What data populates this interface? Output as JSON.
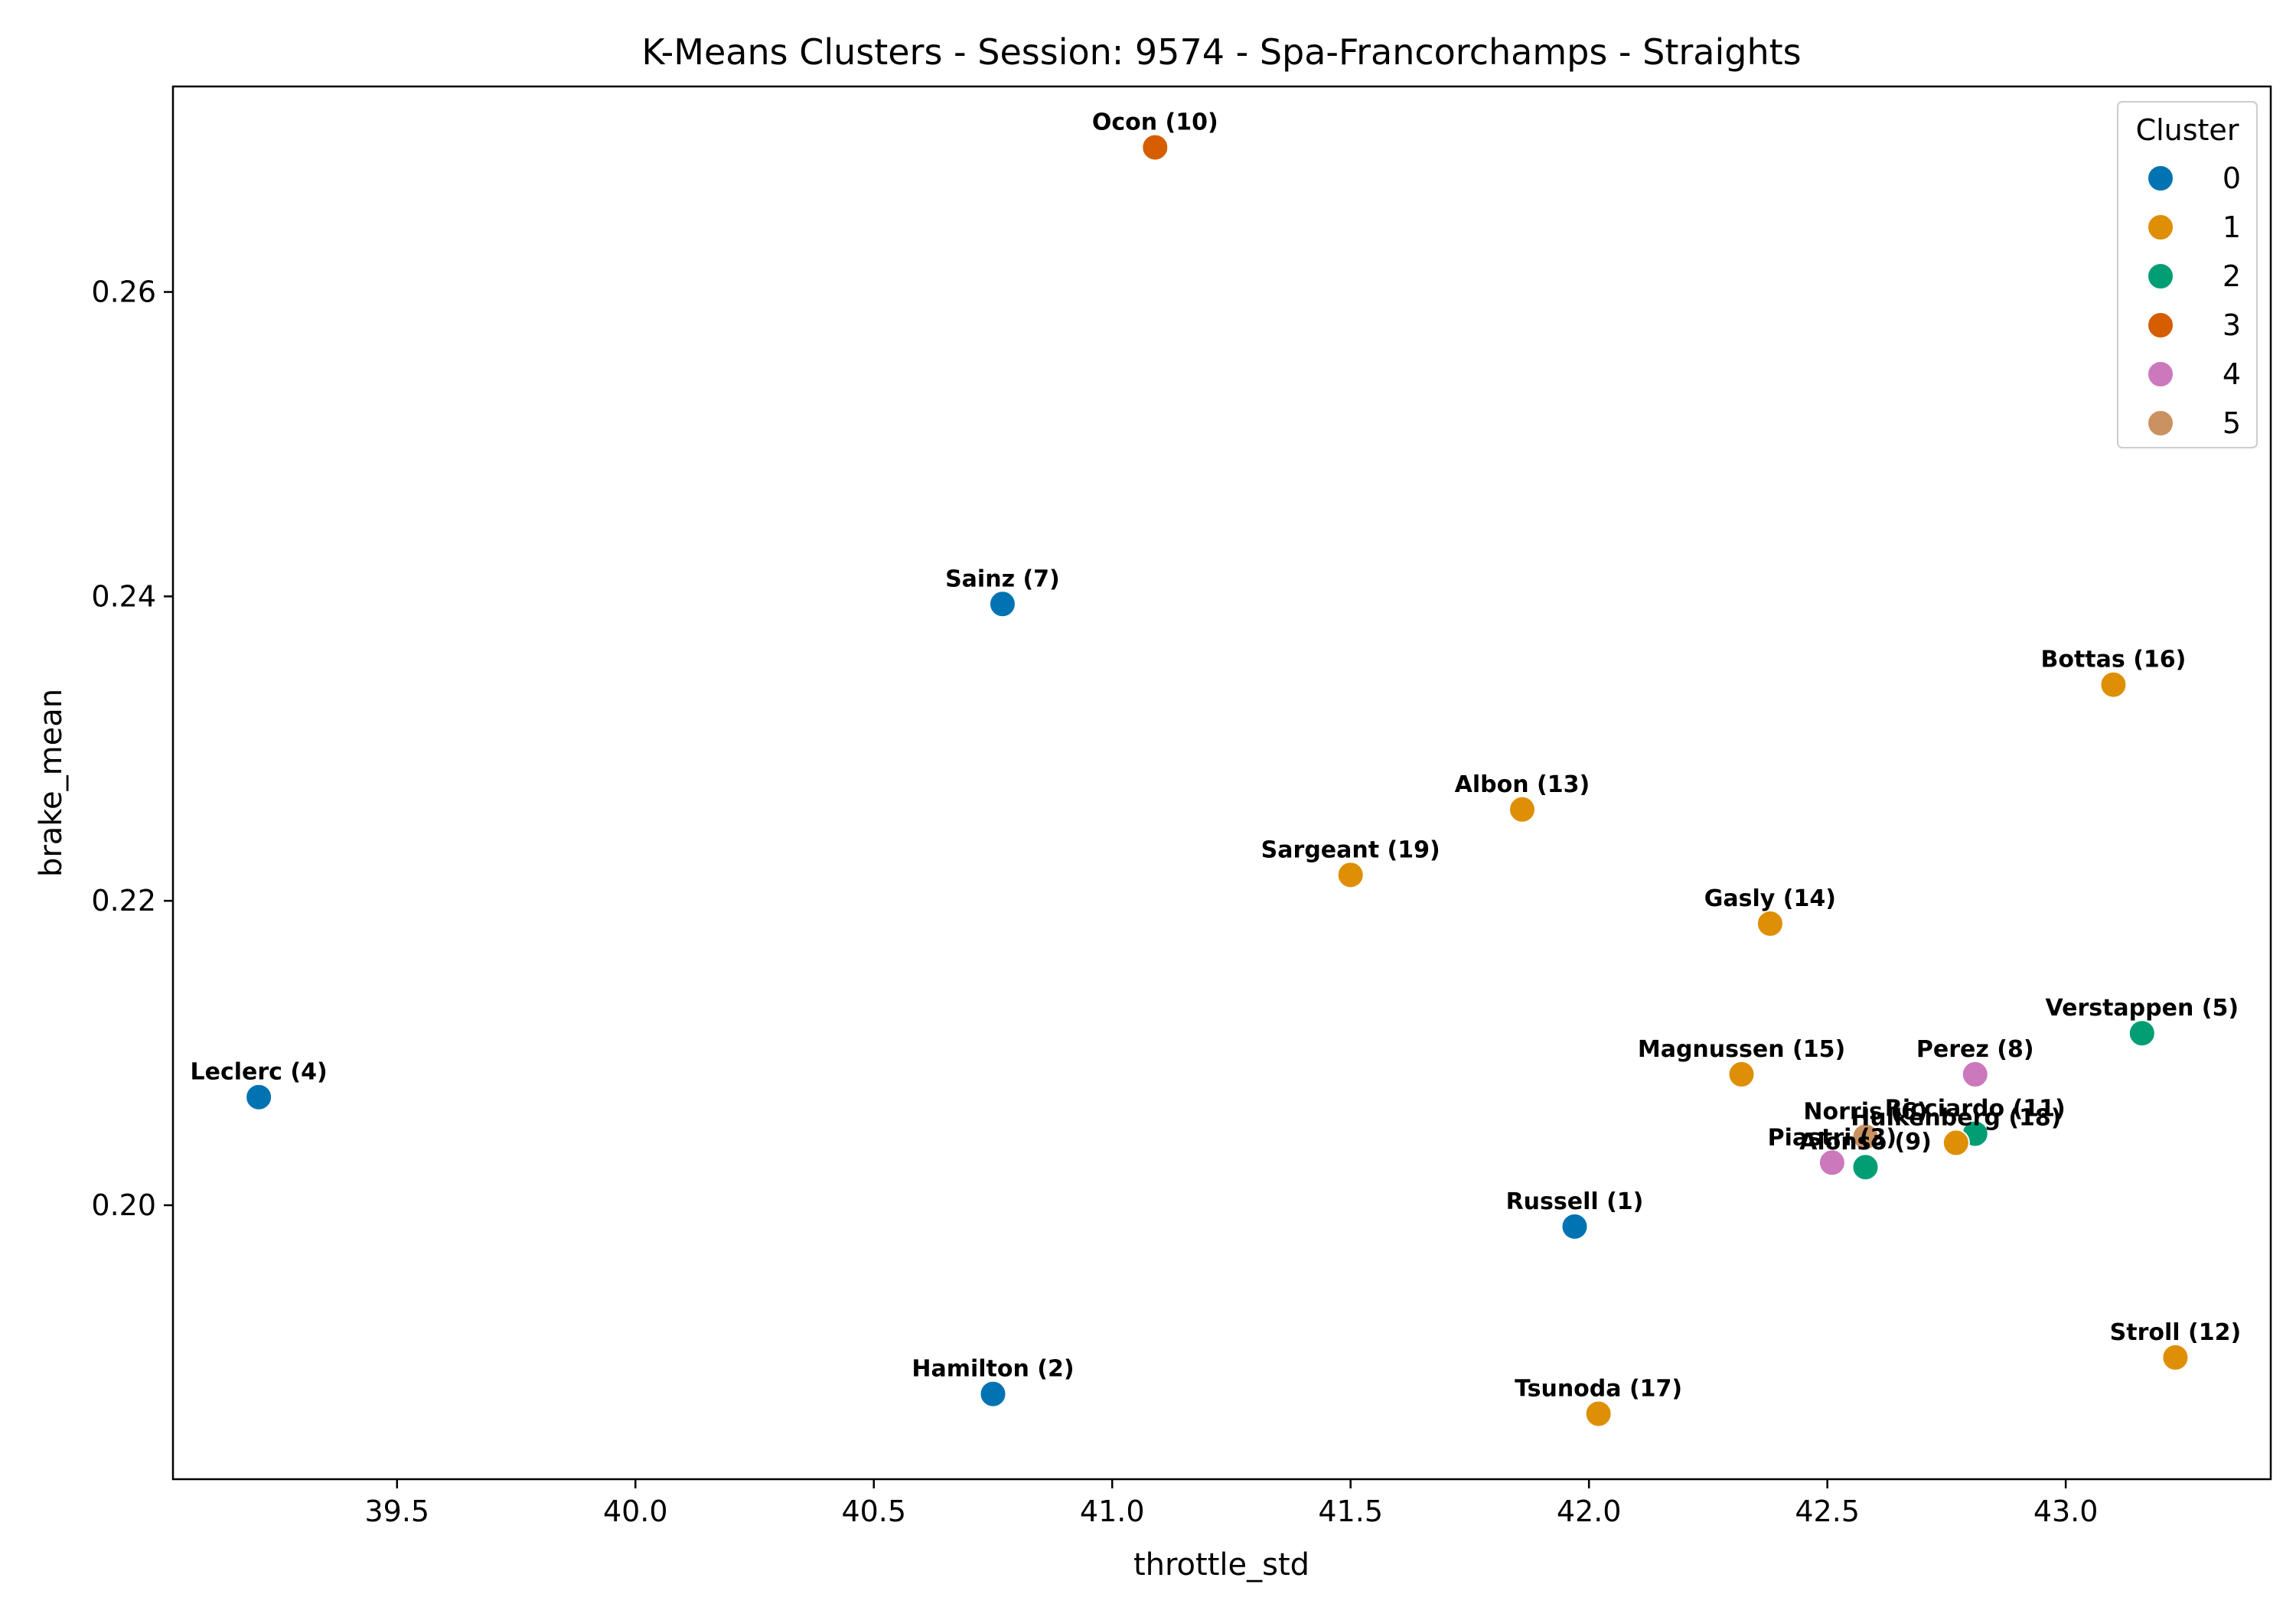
{
  "chart_data": {
    "type": "scatter",
    "title": "K-Means Clusters - Session: 9574 - Spa-Francorchamps - Straights",
    "xlabel": "throttle_std",
    "ylabel": "brake_mean",
    "xlim": [
      39.03,
      43.43
    ],
    "ylim": [
      0.182,
      0.2735
    ],
    "xticks": [
      39.5,
      40.0,
      40.5,
      41.0,
      41.5,
      42.0,
      42.5,
      43.0
    ],
    "xtick_labels": [
      "39.5",
      "40.0",
      "40.5",
      "41.0",
      "41.5",
      "42.0",
      "42.5",
      "43.0"
    ],
    "yticks": [
      0.2,
      0.22,
      0.24,
      0.26
    ],
    "ytick_labels": [
      "0.20",
      "0.22",
      "0.24",
      "0.26"
    ],
    "grid": false,
    "legend": {
      "title": "Cluster",
      "placement": "top-right",
      "entries": [
        {
          "label": "0",
          "color": "#0173b2"
        },
        {
          "label": "1",
          "color": "#de8f05"
        },
        {
          "label": "2",
          "color": "#029e73"
        },
        {
          "label": "3",
          "color": "#d55e00"
        },
        {
          "label": "4",
          "color": "#cc78bc"
        },
        {
          "label": "5",
          "color": "#ca9161"
        }
      ]
    },
    "points": [
      {
        "label": "Ocon (10)",
        "x": 41.09,
        "y": 0.2695,
        "cluster": 3
      },
      {
        "label": "Sainz (7)",
        "x": 40.77,
        "y": 0.2395,
        "cluster": 0
      },
      {
        "label": "Bottas (16)",
        "x": 43.1,
        "y": 0.2342,
        "cluster": 1
      },
      {
        "label": "Albon (13)",
        "x": 41.86,
        "y": 0.226,
        "cluster": 1
      },
      {
        "label": "Sargeant (19)",
        "x": 41.5,
        "y": 0.2217,
        "cluster": 1
      },
      {
        "label": "Gasly (14)",
        "x": 42.38,
        "y": 0.2185,
        "cluster": 1
      },
      {
        "label": "Verstappen (5)",
        "x": 43.16,
        "y": 0.2113,
        "cluster": 2
      },
      {
        "label": "Magnussen (15)",
        "x": 42.32,
        "y": 0.2086,
        "cluster": 1
      },
      {
        "label": "Perez (8)",
        "x": 42.81,
        "y": 0.2086,
        "cluster": 4
      },
      {
        "label": "Leclerc (4)",
        "x": 39.21,
        "y": 0.2071,
        "cluster": 0
      },
      {
        "label": "Norris (6)",
        "x": 42.58,
        "y": 0.2045,
        "cluster": 5
      },
      {
        "label": "Ricciardo (11)",
        "x": 42.81,
        "y": 0.2047,
        "cluster": 2
      },
      {
        "label": "Hulkenberg (18)",
        "x": 42.77,
        "y": 0.2041,
        "cluster": 1
      },
      {
        "label": "Piastri (3)",
        "x": 42.51,
        "y": 0.2028,
        "cluster": 4
      },
      {
        "label": "Alonso (9)",
        "x": 42.58,
        "y": 0.2025,
        "cluster": 2
      },
      {
        "label": "Russell (1)",
        "x": 41.97,
        "y": 0.1986,
        "cluster": 0
      },
      {
        "label": "Stroll (12)",
        "x": 43.23,
        "y": 0.19,
        "cluster": 1
      },
      {
        "label": "Hamilton (2)",
        "x": 40.75,
        "y": 0.1876,
        "cluster": 0
      },
      {
        "label": "Tsunoda (17)",
        "x": 42.02,
        "y": 0.1863,
        "cluster": 1
      }
    ]
  }
}
